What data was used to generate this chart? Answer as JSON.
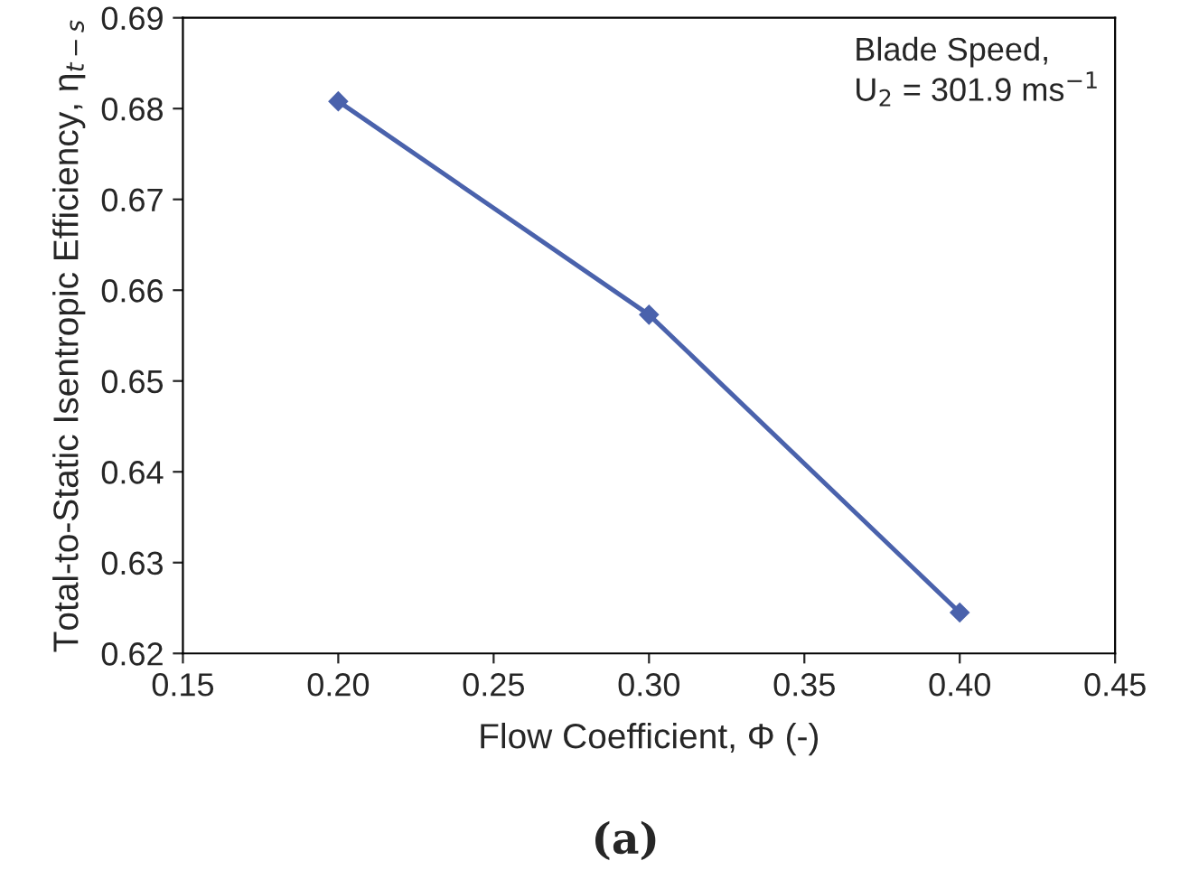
{
  "chart_data": {
    "type": "line",
    "xlabel": "Flow Coefficient, Φ (-)",
    "ylabel": "Total-to-Static Isentropic Efficiency, η$_{t−s}$",
    "x": [
      0.2,
      0.3,
      0.4
    ],
    "series": [
      {
        "color": "#4a62ac",
        "values": [
          0.6808,
          0.6573,
          0.6245
        ]
      }
    ],
    "marker": "diamond",
    "line_style": "solid",
    "grid": false,
    "legend": false,
    "xlim": [
      0.15,
      0.45
    ],
    "xticks": [
      {
        "value": 0.15,
        "label": "0.15"
      },
      {
        "value": 0.2,
        "label": "0.20"
      },
      {
        "value": 0.25,
        "label": "0.25"
      },
      {
        "value": 0.3,
        "label": "0.30"
      },
      {
        "value": 0.35,
        "label": "0.35"
      },
      {
        "value": 0.4,
        "label": "0.40"
      },
      {
        "value": 0.45,
        "label": "0.45"
      }
    ],
    "ylim": [
      0.62,
      0.69
    ],
    "yticks": [
      {
        "value": 0.62,
        "label": "0.62"
      },
      {
        "value": 0.63,
        "label": "0.63"
      },
      {
        "value": 0.64,
        "label": "0.64"
      },
      {
        "value": 0.65,
        "label": "0.65"
      },
      {
        "value": 0.66,
        "label": "0.66"
      },
      {
        "value": 0.67,
        "label": "0.67"
      },
      {
        "value": 0.68,
        "label": "0.68"
      },
      {
        "value": 0.69,
        "label": "0.69"
      }
    ],
    "annotations": [
      "Blade Speed,\nU$_{2}$ = 301.9 ms$^{−1}$",
      "(a)"
    ]
  }
}
